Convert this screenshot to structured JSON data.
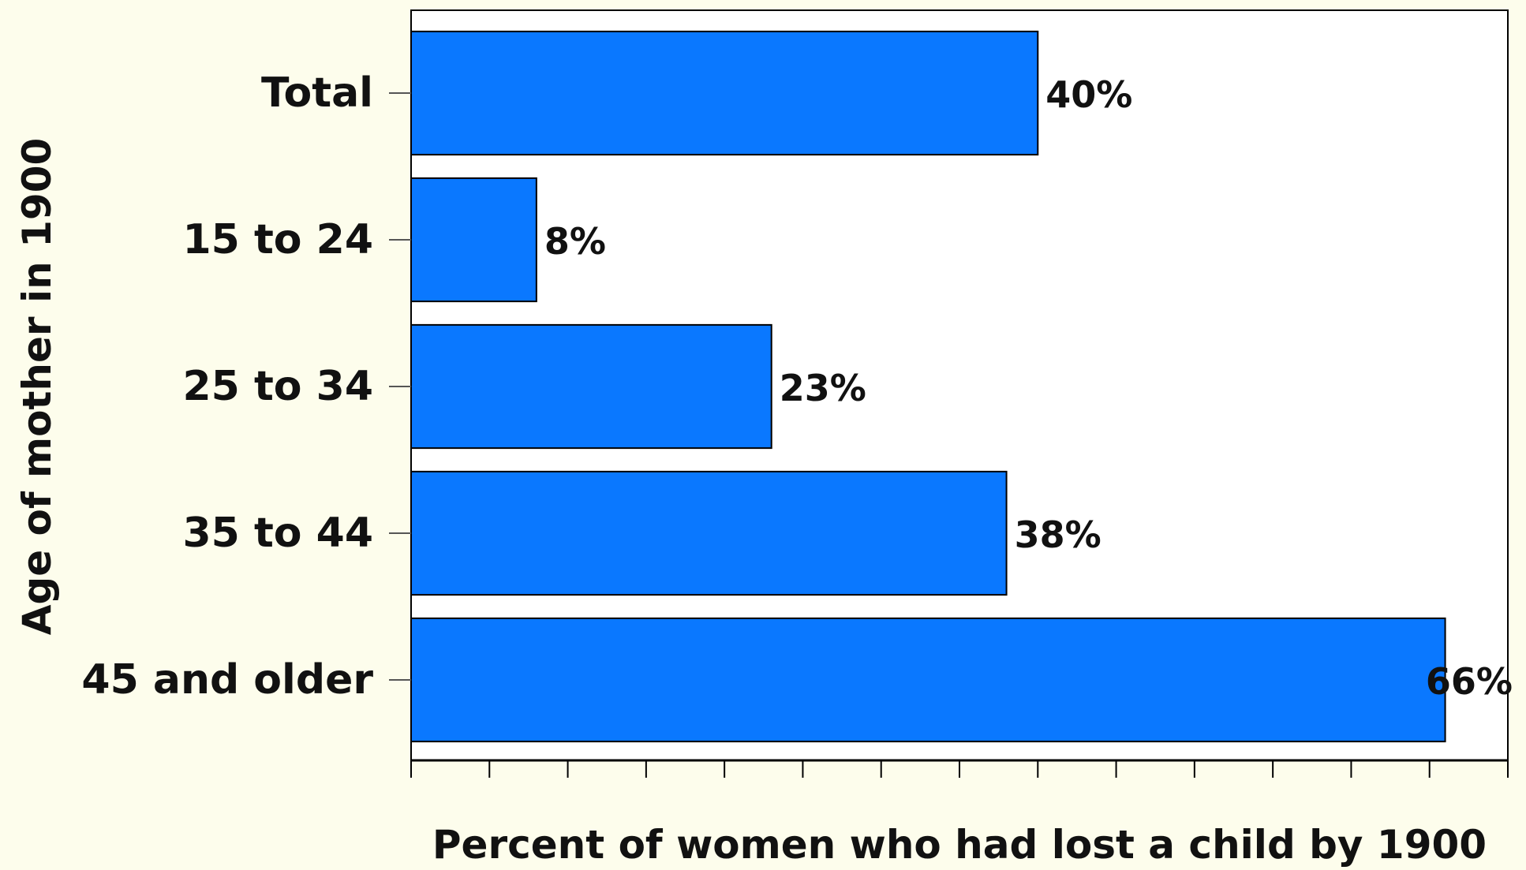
{
  "chart_data": {
    "type": "bar",
    "orientation": "horizontal",
    "categories": [
      "Total",
      "15 to 24",
      "25 to 34",
      "35 to 44",
      "45 and older"
    ],
    "values": [
      40,
      8,
      23,
      38,
      66
    ],
    "data_labels": [
      "40%",
      "8%",
      "23%",
      "38%",
      "66%"
    ],
    "xlabel": "Percent of women who had lost a child by 1900",
    "ylabel": "Age of mother in 1900",
    "xlim": [
      0,
      70
    ],
    "x_ticks": [
      0,
      5,
      10,
      15,
      20,
      25,
      30,
      35,
      40,
      45,
      50,
      55,
      60,
      65,
      70
    ],
    "x_tick_labels_shown": false,
    "grid": false,
    "legend": "none",
    "colors": {
      "bar": "#0a78ff",
      "bar_edge": "#000000",
      "plot_background": "#ffffff",
      "figure_background": "#fdfdec",
      "axis": "#000000",
      "text": "#111111"
    }
  }
}
